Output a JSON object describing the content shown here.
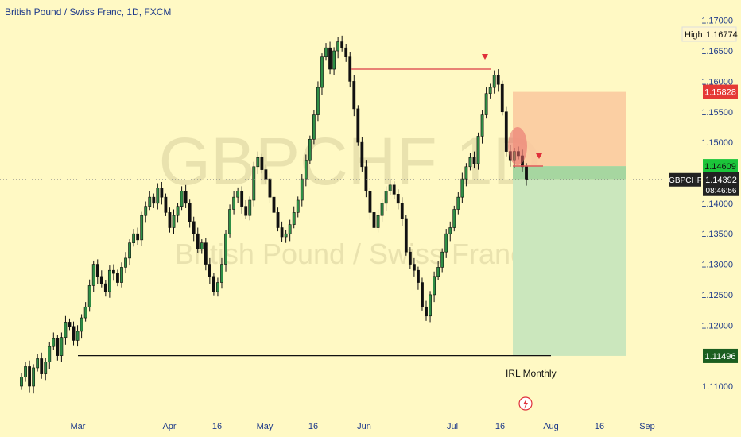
{
  "chart_data": {
    "type": "candlestick",
    "title": "British Pound / Swiss Franc, 1D, FXCM",
    "symbol": "GBPCHF",
    "watermark": {
      "symbol": "GBPCHF",
      "timeframe": "1D",
      "name": "British Pound / Swiss Franc"
    },
    "y_ticks": [
      "1.17000",
      "1.16500",
      "1.16000",
      "1.15500",
      "1.15000",
      "1.14000",
      "1.13500",
      "1.13000",
      "1.12500",
      "1.12000",
      "1.11000"
    ],
    "x_ticks": [
      "Mar",
      "Apr",
      "16",
      "May",
      "16",
      "Jun",
      "Jul",
      "16",
      "Aug",
      "16",
      "Sep"
    ],
    "ylim": [
      1.107,
      1.171
    ],
    "labels": {
      "high_label": "High",
      "high_value": "1.16774",
      "stop_value": "1.15828",
      "entry_value": "1.14609",
      "symbol_label": "GBPCHF",
      "last_value": "1.14392",
      "countdown": "08:46:56",
      "target_value": "1.11496",
      "irl_label": "IRL Monthly"
    },
    "levels": {
      "stop": 1.15828,
      "entry": 1.14609,
      "last": 1.14392,
      "target": 1.11496,
      "resistance": 1.162,
      "irl": 1.115
    },
    "closes": [
      1.1115,
      1.1132,
      1.11,
      1.113,
      1.1145,
      1.112,
      1.114,
      1.1165,
      1.1178,
      1.115,
      1.118,
      1.1205,
      1.1198,
      1.1175,
      1.119,
      1.1212,
      1.123,
      1.1265,
      1.13,
      1.128,
      1.1268,
      1.1255,
      1.129,
      1.1285,
      1.127,
      1.1295,
      1.131,
      1.1335,
      1.135,
      1.134,
      1.138,
      1.1395,
      1.141,
      1.14,
      1.1425,
      1.141,
      1.1385,
      1.136,
      1.138,
      1.1395,
      1.142,
      1.14,
      1.137,
      1.135,
      1.1325,
      1.1335,
      1.13,
      1.128,
      1.1255,
      1.127,
      1.13,
      1.135,
      1.139,
      1.141,
      1.142,
      1.1395,
      1.138,
      1.1405,
      1.146,
      1.1475,
      1.1455,
      1.144,
      1.141,
      1.1385,
      1.136,
      1.1345,
      1.135,
      1.1365,
      1.1385,
      1.1405,
      1.144,
      1.147,
      1.1505,
      1.1545,
      1.159,
      1.164,
      1.1655,
      1.162,
      1.165,
      1.1665,
      1.1655,
      1.164,
      1.16,
      1.1555,
      1.15,
      1.146,
      1.142,
      1.1385,
      1.136,
      1.138,
      1.14,
      1.142,
      1.143,
      1.1415,
      1.14,
      1.1375,
      1.132,
      1.13,
      1.129,
      1.127,
      1.123,
      1.1215,
      1.125,
      1.128,
      1.1295,
      1.132,
      1.135,
      1.136,
      1.139,
      1.141,
      1.144,
      1.146,
      1.1475,
      1.1465,
      1.151,
      1.1545,
      1.158,
      1.159,
      1.161,
      1.1595,
      1.155,
      1.1485,
      1.147,
      1.1485,
      1.1478,
      1.146,
      1.1439
    ]
  }
}
